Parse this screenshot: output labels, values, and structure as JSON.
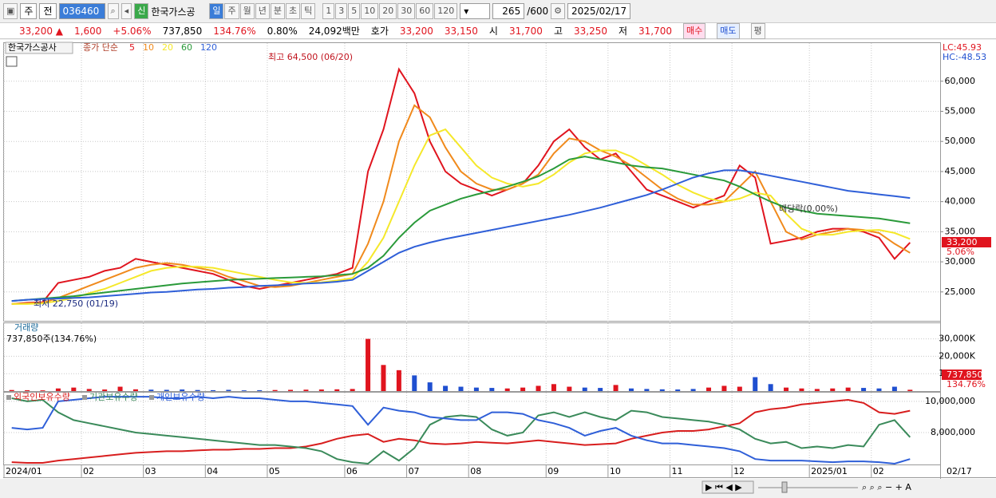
{
  "toolbar": {
    "market": "주",
    "scope": "전",
    "code": "036460",
    "badge": "신",
    "name": "한국가스공",
    "periods": [
      "일",
      "주",
      "월",
      "년",
      "분",
      "초",
      "틱"
    ],
    "intervals": [
      "1",
      "3",
      "5",
      "10",
      "20",
      "30",
      "60",
      "120"
    ],
    "count": "265",
    "max": "/600",
    "date": "2025/02/17"
  },
  "quote": {
    "price": "33,200 ▲",
    "change": "1,600",
    "rate": "+5.06%",
    "volume": "737,850",
    "volume_rate": "134.76%",
    "turnover": "0.80%",
    "amount": "24,092백만",
    "bid_label": "호가",
    "ask": "33,200",
    "bid": "33,150",
    "open_label": "시",
    "open": "31,700",
    "high_label": "고",
    "high": "33,250",
    "low_label": "저",
    "low": "31,700",
    "buy": "매수",
    "sell": "매도",
    "eval": "평"
  },
  "chart_data": [
    {
      "type": "line",
      "title": "한국가스공사",
      "subtitle": "종가 단순",
      "ylim": [
        20200,
        66200
      ],
      "yticks": [
        {
          "value": 25000,
          "label": "25,000"
        },
        {
          "value": 30000,
          "label": "30,000"
        },
        {
          "value": 35000,
          "label": "35,000"
        },
        {
          "value": 40000,
          "label": "40,000"
        },
        {
          "value": 45000,
          "label": "45,000"
        },
        {
          "value": 50000,
          "label": "50,000"
        },
        {
          "value": 55000,
          "label": "55,000"
        },
        {
          "value": 60000,
          "label": "60,000"
        }
      ],
      "grid": true,
      "annotations": [
        "최고 64,500 (06/20)",
        "최저 22,750 (01/19)",
        "배당락(0.00%)"
      ],
      "lc": "LC:45.93",
      "hc": "HC:-48.53",
      "last_label": "33,200",
      "last_rate": "5.06%",
      "series": [
        {
          "name": "5",
          "color": "#e0141e",
          "values": [
            23000,
            23200,
            23300,
            26500,
            27000,
            27500,
            28500,
            29000,
            30500,
            30000,
            29500,
            29000,
            28500,
            28000,
            27000,
            26000,
            25500,
            26000,
            26500,
            27000,
            27500,
            28000,
            29000,
            45000,
            52000,
            62000,
            58000,
            50000,
            45000,
            43000,
            42000,
            41000,
            42000,
            43000,
            46000,
            50000,
            52000,
            49000,
            47000,
            48000,
            45000,
            42000,
            41000,
            40000,
            39000,
            40000,
            41000,
            46000,
            44000,
            33000,
            33500,
            34000,
            35000,
            35500,
            35500,
            35000,
            34000,
            30500,
            33200
          ]
        },
        {
          "name": "10",
          "color": "#f08a1c",
          "values": [
            23000,
            23100,
            23200,
            24000,
            25000,
            26000,
            27000,
            28000,
            29000,
            29500,
            29800,
            29500,
            29000,
            28500,
            27500,
            26800,
            26000,
            25800,
            26000,
            26500,
            27000,
            27500,
            28000,
            33000,
            40000,
            50000,
            56000,
            54000,
            49000,
            45000,
            43000,
            42000,
            42000,
            43000,
            44500,
            48000,
            50500,
            50000,
            48500,
            47500,
            46000,
            44000,
            42000,
            40500,
            39500,
            39500,
            40000,
            42500,
            45000,
            40000,
            35000,
            33700,
            34500,
            35000,
            35500,
            35300,
            34800,
            33000,
            31500
          ]
        },
        {
          "name": "20",
          "color": "#f5e82a",
          "values": [
            23000,
            23000,
            23100,
            23500,
            24000,
            24800,
            25500,
            26500,
            27500,
            28500,
            29000,
            29200,
            29200,
            29000,
            28500,
            28000,
            27500,
            27000,
            26600,
            26500,
            26600,
            26900,
            27300,
            30000,
            34000,
            40000,
            46000,
            51000,
            52000,
            49000,
            46000,
            44000,
            43000,
            42500,
            43000,
            44500,
            46500,
            48000,
            48500,
            48500,
            47500,
            46000,
            44500,
            42800,
            41500,
            40500,
            40000,
            40500,
            41500,
            41000,
            38000,
            35500,
            34500,
            34500,
            35000,
            35200,
            35300,
            34800,
            33800
          ]
        },
        {
          "name": "60",
          "color": "#2a9a3a",
          "values": [
            23500,
            23700,
            23900,
            24100,
            24300,
            24600,
            24900,
            25200,
            25500,
            25800,
            26100,
            26400,
            26600,
            26800,
            27000,
            27100,
            27200,
            27300,
            27400,
            27500,
            27600,
            27800,
            28000,
            29000,
            31000,
            34000,
            36500,
            38500,
            39500,
            40500,
            41200,
            41800,
            42500,
            43300,
            44200,
            45500,
            47000,
            47500,
            47000,
            46500,
            46000,
            45700,
            45500,
            45000,
            44500,
            44000,
            43500,
            42500,
            41200,
            40000,
            39000,
            38500,
            38000,
            37800,
            37600,
            37400,
            37200,
            36800,
            36400
          ]
        },
        {
          "name": "120",
          "color": "#2f5fd8",
          "values": [
            23500,
            23700,
            23800,
            23900,
            24000,
            24100,
            24300,
            24500,
            24700,
            24900,
            25000,
            25200,
            25400,
            25500,
            25700,
            25800,
            26000,
            26100,
            26200,
            26400,
            26500,
            26700,
            27000,
            28500,
            30000,
            31500,
            32500,
            33200,
            33800,
            34300,
            34800,
            35300,
            35800,
            36300,
            36800,
            37300,
            37800,
            38400,
            39000,
            39700,
            40400,
            41100,
            42000,
            43000,
            44000,
            44700,
            45200,
            45200,
            44800,
            44300,
            43800,
            43300,
            42800,
            42300,
            41800,
            41500,
            41200,
            40900,
            40600
          ]
        }
      ]
    },
    {
      "type": "bar",
      "title": "거래량",
      "subtitle": "737,850주(134.76%)",
      "ylim": [
        0,
        39000
      ],
      "yticks": [
        {
          "value": 10000,
          "label": "10,000K"
        },
        {
          "value": 20000,
          "label": "20,000K"
        },
        {
          "value": 30000,
          "label": "30,000K"
        }
      ],
      "grid": true,
      "up_color": "#e0141e",
      "down_color": "#1f4fd0",
      "last_label": "737,850",
      "last_rate": "134.76%",
      "values": [
        600,
        500,
        400,
        1500,
        2000,
        1200,
        900,
        2500,
        1000,
        800,
        700,
        900,
        600,
        500,
        700,
        400,
        500,
        600,
        700,
        800,
        900,
        1000,
        1200,
        30000,
        15000,
        12000,
        9000,
        5000,
        3000,
        2500,
        2000,
        1800,
        1500,
        2000,
        3000,
        4000,
        2500,
        2000,
        1800,
        3500,
        1500,
        1200,
        1000,
        900,
        1200,
        2000,
        3000,
        2500,
        8000,
        4000,
        2000,
        1500,
        1200,
        1500,
        2000,
        1800,
        1500,
        2500,
        737.85
      ]
    },
    {
      "type": "line",
      "ylim": [
        5950000,
        10560000
      ],
      "yticks": [
        {
          "value": 8000000,
          "label": "8,000,000"
        },
        {
          "value": 10000000,
          "label": "10,000,000"
        }
      ],
      "grid": true,
      "categories": [
        "2024/01",
        null,
        null,
        null,
        null,
        "02",
        null,
        null,
        null,
        "03",
        null,
        null,
        null,
        "04",
        null,
        null,
        null,
        "05",
        null,
        null,
        null,
        null,
        "06",
        null,
        null,
        null,
        "07",
        null,
        null,
        null,
        "08",
        null,
        null,
        null,
        null,
        "09",
        null,
        null,
        null,
        "10",
        null,
        null,
        null,
        "11",
        null,
        null,
        null,
        "12",
        null,
        null,
        null,
        null,
        "2025/01",
        null,
        null,
        null,
        "02",
        null,
        null
      ],
      "x_end_label": "02/17",
      "series": [
        {
          "name": "외국인보유수량",
          "color": "#d81e1e",
          "values": [
            6100000,
            6050000,
            6050000,
            6200000,
            6300000,
            6400000,
            6500000,
            6600000,
            6700000,
            6750000,
            6800000,
            6800000,
            6850000,
            6900000,
            6900000,
            6950000,
            6950000,
            7000000,
            7000000,
            7100000,
            7300000,
            7600000,
            7800000,
            7900000,
            7400000,
            7600000,
            7500000,
            7300000,
            7250000,
            7300000,
            7400000,
            7350000,
            7300000,
            7400000,
            7500000,
            7400000,
            7300000,
            7200000,
            7250000,
            7300000,
            7600000,
            7800000,
            8000000,
            8100000,
            8100000,
            8200000,
            8400000,
            8600000,
            9300000,
            9500000,
            9600000,
            9800000,
            9900000,
            10000000,
            10100000,
            9900000,
            9300000,
            9200000,
            9400000
          ]
        },
        {
          "name": "기관보유수량",
          "color": "#3a8a5a",
          "values": [
            10200000,
            10000000,
            10100000,
            9300000,
            8800000,
            8600000,
            8400000,
            8200000,
            8000000,
            7900000,
            7800000,
            7700000,
            7600000,
            7500000,
            7400000,
            7300000,
            7200000,
            7200000,
            7100000,
            7000000,
            6800000,
            6300000,
            6100000,
            6000000,
            6800000,
            6200000,
            7000000,
            8500000,
            9000000,
            9100000,
            9000000,
            8200000,
            7800000,
            8000000,
            9100000,
            9300000,
            9000000,
            9300000,
            9000000,
            8800000,
            9400000,
            9300000,
            9000000,
            8900000,
            8800000,
            8700000,
            8500000,
            8200000,
            7600000,
            7300000,
            7400000,
            7000000,
            7100000,
            7000000,
            7200000,
            7100000,
            8500000,
            8800000,
            7700000
          ]
        },
        {
          "name": "개인보유수량",
          "color": "#2f5fd8",
          "values": [
            8300000,
            8200000,
            8300000,
            10000000,
            10100000,
            10200000,
            10300000,
            10300000,
            10300000,
            10300000,
            10200000,
            10200000,
            10300000,
            10200000,
            10300000,
            10200000,
            10200000,
            10100000,
            10000000,
            10000000,
            9900000,
            9800000,
            9700000,
            8500000,
            9600000,
            9400000,
            9300000,
            9000000,
            8900000,
            8800000,
            8800000,
            9300000,
            9300000,
            9200000,
            8800000,
            8600000,
            8300000,
            7800000,
            8100000,
            8300000,
            7800000,
            7500000,
            7300000,
            7300000,
            7200000,
            7100000,
            7000000,
            6800000,
            6300000,
            6200000,
            6200000,
            6200000,
            6150000,
            6100000,
            6150000,
            6150000,
            6100000,
            6000000,
            6300000
          ]
        }
      ]
    }
  ]
}
